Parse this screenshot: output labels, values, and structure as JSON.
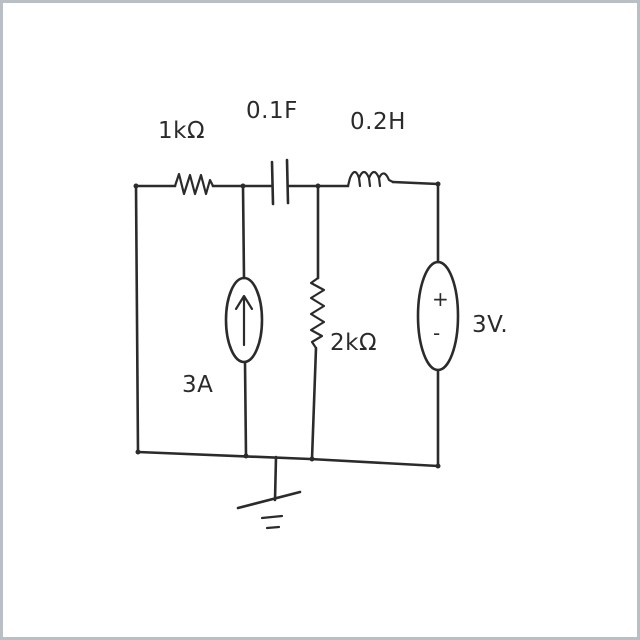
{
  "components": {
    "r1": {
      "label": "1kΩ"
    },
    "capacitor": {
      "label": "0.1F"
    },
    "inductor": {
      "label": "0.2H"
    },
    "r2": {
      "label": "2kΩ"
    },
    "current_source": {
      "label": "3A"
    },
    "voltage_source": {
      "label": "3V.",
      "plus": "+",
      "minus": "-"
    }
  },
  "colors": {
    "ink": "#2b2b2b",
    "background": "#ffffff",
    "frame": "#b9bfc4"
  }
}
